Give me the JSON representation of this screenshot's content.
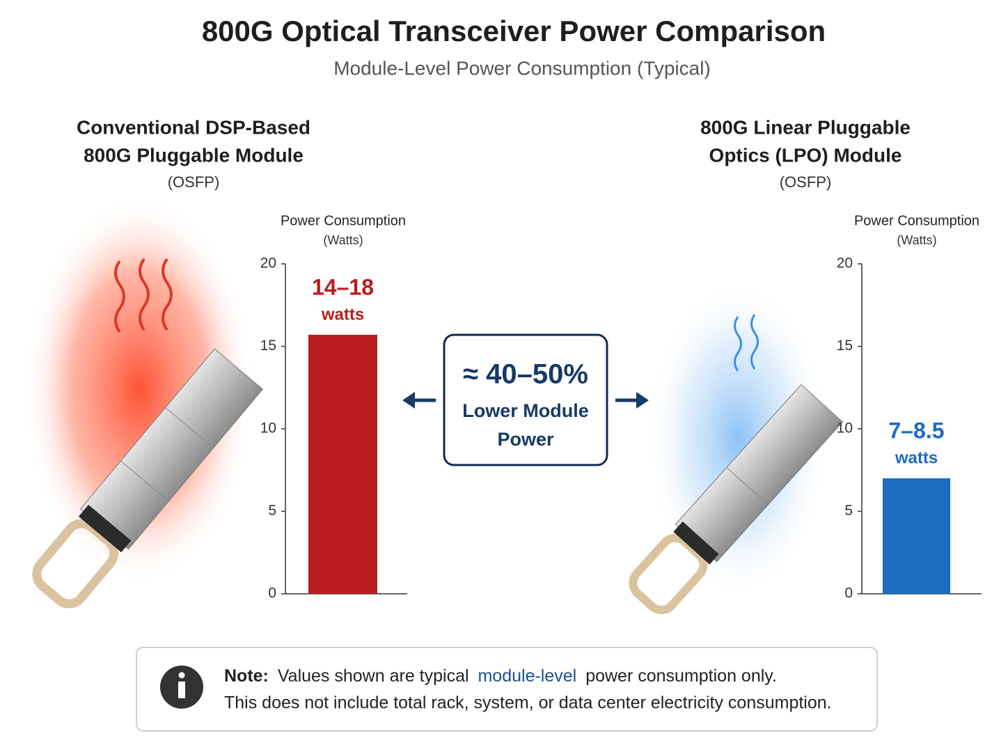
{
  "title": "800G Optical Transceiver Power Comparison",
  "subtitle": "Module-Level Power Consumption (Typical)",
  "chart_data": [
    {
      "type": "bar",
      "module_name": [
        "Conventional DSP-Based",
        "800G Pluggable Module"
      ],
      "form_factor": "(OSFP)",
      "y_label": "Power Consumption",
      "y_unit": "(Watts)",
      "categories": [
        null
      ],
      "values": [
        15.7
      ],
      "color": "#bb1c1f",
      "annotation": "14–18",
      "annotation_unit": "watts",
      "ylim": [
        0,
        20
      ],
      "yticks": [
        0,
        5,
        10,
        15,
        20
      ]
    },
    {
      "type": "bar",
      "module_name": [
        "800G Linear Pluggable",
        "Optics (LPO) Module"
      ],
      "form_factor": "(OSFP)",
      "y_label": "Power Consumption",
      "y_unit": "(Watts)",
      "categories": [
        null
      ],
      "values": [
        7.0
      ],
      "color": "#1c6cbf",
      "annotation": "7–8.5",
      "annotation_unit": "watts",
      "ylim": [
        0,
        20
      ],
      "yticks": [
        0,
        5,
        10,
        15,
        20
      ]
    }
  ],
  "callout": {
    "value": "≈ 40–50%",
    "lines": [
      "Lower Module",
      "Power"
    ]
  },
  "note": {
    "label": "Note:",
    "line1_before": "Values shown are typical",
    "line1_highlight": "module-level",
    "line1_after": "power consumption only.",
    "line2": "This does not include total rack, system, or data center electricity consumption."
  }
}
